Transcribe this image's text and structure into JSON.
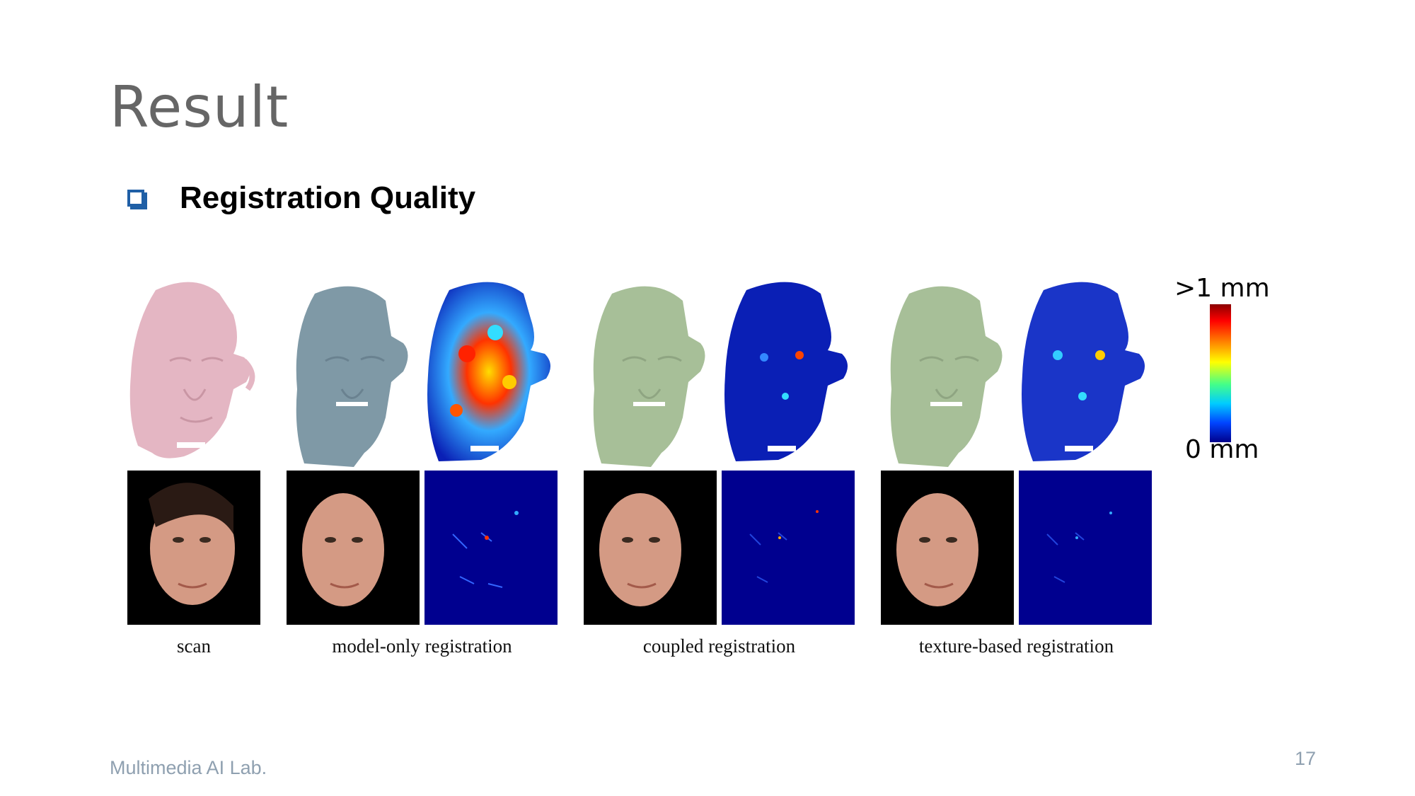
{
  "slide": {
    "title": "Result",
    "bullet": "Registration Quality",
    "footer": "Multimedia AI Lab.",
    "page_number": "17"
  },
  "figure": {
    "captions": [
      "scan",
      "model-only registration",
      "coupled registration",
      "texture-based registration"
    ],
    "colorbar": {
      "top_label": ">1 mm",
      "bottom_label": "0 mm"
    },
    "colors": {
      "scan_mesh": "#e4b6c3",
      "model_only_mesh": "#7f99a6",
      "coupled_mesh": "#a7bf98",
      "heatmap_base": "#0a1fb5",
      "photo_bg": "#000000",
      "error_map_bg": "#00008f"
    }
  }
}
